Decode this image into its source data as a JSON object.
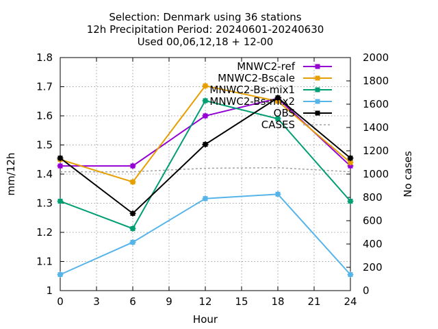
{
  "title_lines": [
    "Selection: Denmark using    36 stations",
    "12h Precipitation    Period: 20240601-20240630",
    "Used 00,06,12,18 + 12-00"
  ],
  "chart_data": {
    "type": "line",
    "xlabel": "Hour",
    "ylabel": "mm/12h",
    "y2label": "No cases",
    "xlim": [
      0,
      24
    ],
    "ylim": [
      1.0,
      1.8
    ],
    "y2lim": [
      0,
      2000
    ],
    "xticks": [
      0,
      3,
      6,
      9,
      12,
      15,
      18,
      21,
      24
    ],
    "yticks": [
      1,
      1.1,
      1.2,
      1.3,
      1.4,
      1.5,
      1.6,
      1.7,
      1.8
    ],
    "y2ticks": [
      0,
      200,
      400,
      600,
      800,
      1000,
      1200,
      1400,
      1600,
      1800,
      2000
    ],
    "x": [
      0,
      6,
      12,
      18,
      24
    ],
    "series": [
      {
        "name": "MNWC2-ref",
        "color": "#9400d3",
        "values": [
          1.428,
          1.428,
          1.6,
          1.66,
          1.428
        ]
      },
      {
        "name": "MNWC2-Bscale",
        "color": "#e69f00",
        "values": [
          1.45,
          1.373,
          1.703,
          1.65,
          1.44
        ]
      },
      {
        "name": "MNWC2-Bs-mix1",
        "color": "#009e73",
        "values": [
          1.307,
          1.213,
          1.652,
          1.59,
          1.307
        ]
      },
      {
        "name": "MNWC2-Bs-mix2",
        "color": "#56b4e9",
        "values": [
          1.055,
          1.166,
          1.316,
          1.331,
          1.055
        ]
      },
      {
        "name": "OBS",
        "color": "#000000",
        "values": [
          1.455,
          1.265,
          1.502,
          1.662,
          1.455
        ]
      }
    ],
    "cases": {
      "name": "CASES",
      "color": "#a0a0a0",
      "values": [
        1020,
        1020,
        1050,
        1055,
        1020
      ]
    },
    "legend_position": "top-right",
    "grid": true
  }
}
